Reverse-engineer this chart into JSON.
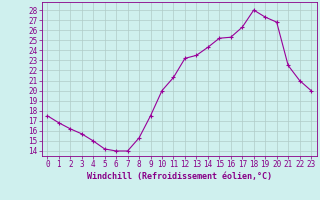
{
  "x": [
    0,
    1,
    2,
    3,
    4,
    5,
    6,
    7,
    8,
    9,
    10,
    11,
    12,
    13,
    14,
    15,
    16,
    17,
    18,
    19,
    20,
    21,
    22,
    23
  ],
  "y": [
    17.5,
    16.8,
    16.2,
    15.7,
    15.0,
    14.2,
    14.0,
    14.0,
    15.3,
    17.5,
    20.0,
    21.3,
    23.2,
    23.5,
    24.3,
    25.2,
    25.3,
    26.3,
    28.0,
    27.3,
    26.8,
    22.5,
    21.0,
    20.0
  ],
  "line_color": "#990099",
  "marker": "+",
  "marker_size": 3,
  "linewidth": 0.8,
  "xlabel": "Windchill (Refroidissement éolien,°C)",
  "xlabel_fontsize": 6.0,
  "bg_color": "#cff0ee",
  "grid_color": "#b0ccc8",
  "yticks": [
    14,
    15,
    16,
    17,
    18,
    19,
    20,
    21,
    22,
    23,
    24,
    25,
    26,
    27,
    28
  ],
  "xticks": [
    0,
    1,
    2,
    3,
    4,
    5,
    6,
    7,
    8,
    9,
    10,
    11,
    12,
    13,
    14,
    15,
    16,
    17,
    18,
    19,
    20,
    21,
    22,
    23
  ],
  "ylim": [
    13.5,
    28.8
  ],
  "xlim": [
    -0.5,
    23.5
  ],
  "tick_fontsize": 5.5,
  "tick_color": "#880088"
}
